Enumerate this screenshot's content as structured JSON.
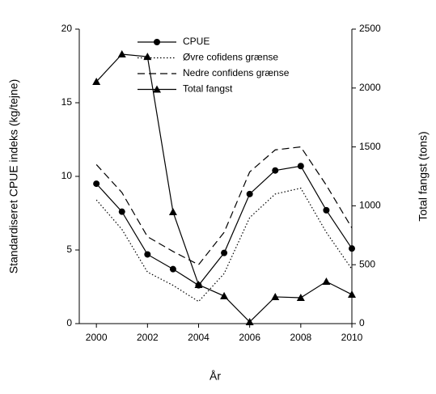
{
  "chart_data": {
    "type": "line",
    "x": [
      2000,
      2001,
      2002,
      2003,
      2004,
      2005,
      2006,
      2007,
      2008,
      2009,
      2010
    ],
    "xlabel": "År",
    "ylabel": "Standardiseret CPUE indeks (kg/tejne)",
    "y2label": "Total fangst (tons)",
    "xlim": [
      1999.33,
      2010
    ],
    "xticks": [
      2000,
      2002,
      2004,
      2006,
      2008,
      2010
    ],
    "ylim": [
      0,
      20
    ],
    "yticks": [
      0,
      5,
      10,
      15,
      20
    ],
    "y2lim": [
      0,
      2500
    ],
    "y2ticks": [
      0,
      500,
      1000,
      1500,
      2000,
      2500
    ],
    "series": [
      {
        "name": "CPUE",
        "color": "#000000",
        "dash": "solid",
        "marker": "circle",
        "values": [
          9.5,
          7.6,
          4.7,
          3.7,
          2.6,
          4.8,
          8.8,
          10.4,
          10.7,
          7.7,
          5.1
        ]
      },
      {
        "name": "Øvre cofidens grænse",
        "color": "#000000",
        "dash": "dotted",
        "marker": null,
        "values": [
          8.4,
          6.4,
          3.5,
          2.6,
          1.5,
          3.4,
          7.2,
          8.8,
          9.2,
          6.2,
          3.7
        ]
      },
      {
        "name": "Nedre confidens grænse",
        "color": "#000000",
        "dash": "dashed",
        "marker": null,
        "values": [
          10.8,
          8.9,
          5.9,
          4.9,
          4.0,
          6.2,
          10.3,
          11.8,
          12.0,
          9.4,
          6.5
        ]
      },
      {
        "name": "Total fangst",
        "color": "#000000",
        "dash": "solid",
        "marker": "triangle",
        "axis": "y2",
        "values": [
          2054,
          2287,
          2266,
          948,
          330,
          234,
          14,
          227,
          220,
          357,
          247
        ]
      }
    ]
  }
}
